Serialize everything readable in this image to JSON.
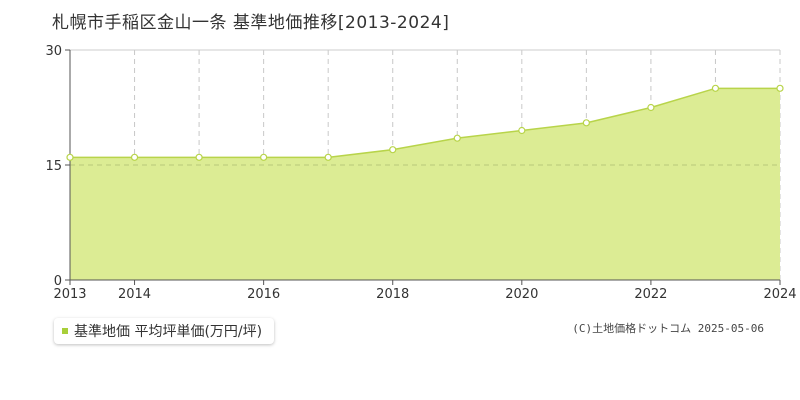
{
  "title": "札幌市手稲区金山一条 基準地価推移[2013-2024]",
  "copyright": "(C)土地価格ドットコム 2025-05-06",
  "chart_data": {
    "type": "area",
    "title": "札幌市手稲区金山一条 基準地価推移[2013-2024]",
    "x": [
      2013,
      2014,
      2015,
      2016,
      2017,
      2018,
      2019,
      2020,
      2021,
      2022,
      2023,
      2024
    ],
    "series": [
      {
        "name": "基準地価 平均坪単価(万円/坪)",
        "values": [
          16.0,
          16.0,
          16.0,
          16.0,
          16.0,
          17.0,
          18.5,
          19.5,
          20.5,
          22.5,
          25.0,
          25.0
        ],
        "fill_color": "#dcec94",
        "line_color": "#b8d44a"
      }
    ],
    "x_tick_labels": [
      "2013",
      "2014",
      "2016",
      "2018",
      "2020",
      "2022",
      "2024"
    ],
    "y_tick_labels": [
      "0",
      "15",
      "30"
    ],
    "ylim": [
      0,
      30
    ],
    "xlim": [
      2013,
      2024
    ],
    "grid": true,
    "legend_placement": "bottom-left"
  },
  "legend": {
    "label": "基準地価 平均坪単価(万円/坪)",
    "color": "#a8cf3a"
  }
}
